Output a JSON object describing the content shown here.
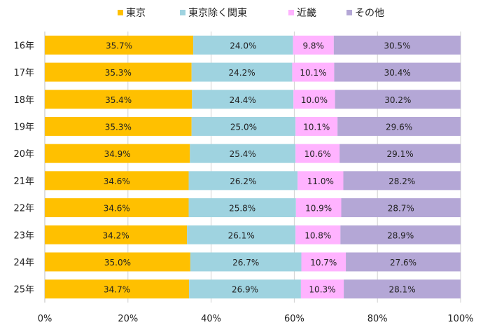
{
  "chart_data": {
    "type": "bar",
    "orientation": "horizontal",
    "stacked": true,
    "percent": true,
    "categories": [
      "16年",
      "17年",
      "18年",
      "19年",
      "20年",
      "21年",
      "22年",
      "23年",
      "24年",
      "25年"
    ],
    "series": [
      {
        "name": "東京",
        "color": "#ffc000",
        "values": [
          35.7,
          35.3,
          35.4,
          35.3,
          34.9,
          34.6,
          34.6,
          34.2,
          35.0,
          34.7
        ]
      },
      {
        "name": "東京除く関東",
        "color": "#9fd3e0",
        "values": [
          24.0,
          24.2,
          24.4,
          25.0,
          25.4,
          26.2,
          25.8,
          26.1,
          26.7,
          26.9
        ]
      },
      {
        "name": "近畿",
        "color": "#ffb3ff",
        "values": [
          9.8,
          10.1,
          10.0,
          10.1,
          10.6,
          11.0,
          10.9,
          10.8,
          10.7,
          10.3
        ]
      },
      {
        "name": "その他",
        "color": "#b4a7d6",
        "values": [
          30.5,
          30.4,
          30.2,
          29.6,
          29.1,
          28.2,
          28.7,
          28.9,
          27.6,
          28.1
        ]
      }
    ],
    "xlim": [
      0,
      100
    ],
    "x_ticks": [
      "0%",
      "20%",
      "40%",
      "60%",
      "80%",
      "100%"
    ],
    "grid": true,
    "legend_position": "top"
  }
}
